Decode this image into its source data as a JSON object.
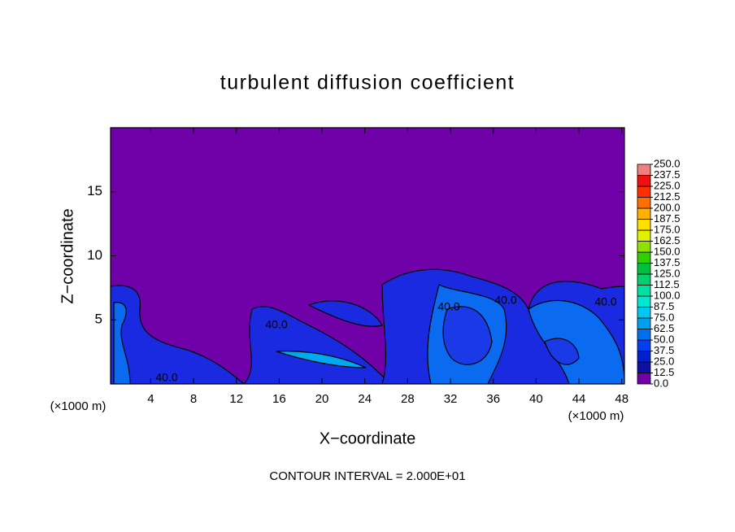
{
  "chart_data": {
    "type": "contour",
    "title": "turbulent diffusion coefficient",
    "x_label": "X−coordinate",
    "y_label": "Z−coordinate",
    "x_unit_left": "(×1000 m)",
    "x_unit_right": "(×1000 m)",
    "note": "CONTOUR INTERVAL = 2.000E+01",
    "xlim": [
      0.25,
      48.25
    ],
    "xticks": [
      4,
      8,
      12,
      16,
      20,
      24,
      28,
      32,
      36,
      40,
      44,
      48
    ],
    "ylim": [
      0,
      20
    ],
    "yticks": [
      5,
      10,
      15
    ],
    "background_color": "#7000a8",
    "contour_labels": [
      "40.0",
      "40.0",
      "40.0",
      "40.0",
      "40.0"
    ],
    "colorbar": {
      "ticks": [
        {
          "value": 0,
          "label": "0.0"
        },
        {
          "value": 12.5,
          "label": "12.5"
        },
        {
          "value": 25,
          "label": "25.0"
        },
        {
          "value": 37.5,
          "label": "37.5"
        },
        {
          "value": 50,
          "label": "50.0"
        },
        {
          "value": 62.5,
          "label": "62.5"
        },
        {
          "value": 75,
          "label": "75.0"
        },
        {
          "value": 87.5,
          "label": "87.5"
        },
        {
          "value": 100,
          "label": "100.0"
        },
        {
          "value": 112.5,
          "label": "112.5"
        },
        {
          "value": 125,
          "label": "125.0"
        },
        {
          "value": 137.5,
          "label": "137.5"
        },
        {
          "value": 150,
          "label": "150.0"
        },
        {
          "value": 162.5,
          "label": "162.5"
        },
        {
          "value": 175,
          "label": "175.0"
        },
        {
          "value": 187.5,
          "label": "187.5"
        },
        {
          "value": 200,
          "label": "200.0"
        },
        {
          "value": 212.5,
          "label": "212.5"
        },
        {
          "value": 225,
          "label": "225.0"
        },
        {
          "value": 237.5,
          "label": "237.5"
        },
        {
          "value": 250,
          "label": "250.0"
        }
      ],
      "colors": [
        "#7000a8",
        "#1010a0",
        "#0020d0",
        "#0040f0",
        "#0070f0",
        "#00a0f0",
        "#00c8f0",
        "#00e8d0",
        "#00e0a0",
        "#00d070",
        "#00c040",
        "#30d000",
        "#90e000",
        "#e0f000",
        "#ffe000",
        "#ffb000",
        "#ff7000",
        "#ff3000",
        "#f01010",
        "#f08080"
      ]
    }
  }
}
